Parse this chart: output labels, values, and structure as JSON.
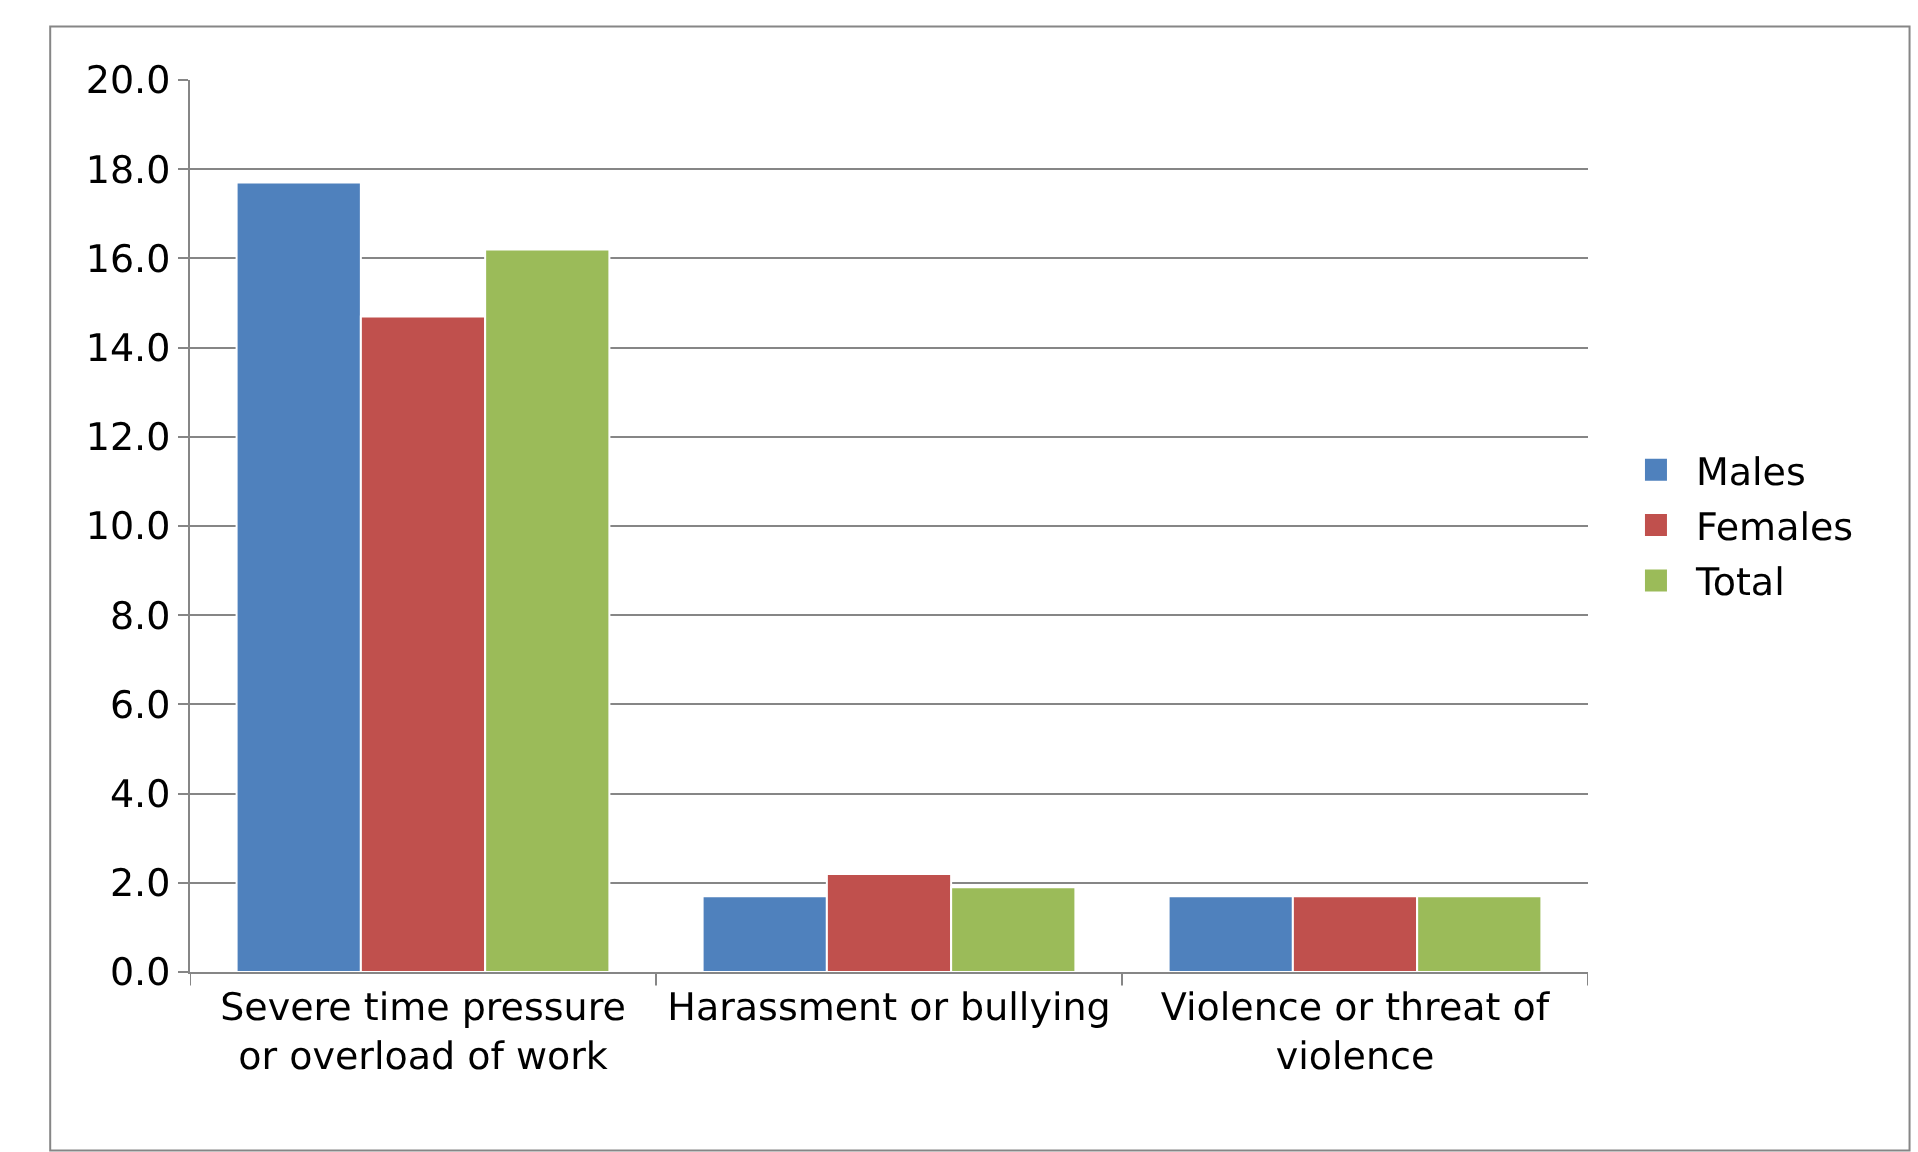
{
  "chart_data": {
    "type": "bar",
    "categories": [
      "Severe time pressure or overload of work",
      "Harassment or bullying",
      "Violence or threat of violence"
    ],
    "series": [
      {
        "name": "Males",
        "color": "#4f81bd",
        "values": [
          17.7,
          1.7,
          1.7
        ]
      },
      {
        "name": "Females",
        "color": "#c0504d",
        "values": [
          14.7,
          2.2,
          1.7
        ]
      },
      {
        "name": "Total",
        "color": "#9bbb59",
        "values": [
          16.2,
          1.9,
          1.7
        ]
      }
    ],
    "ylim": [
      0,
      20
    ],
    "yticks": [
      {
        "value": 0,
        "label": "0.0"
      },
      {
        "value": 2,
        "label": "2.0"
      },
      {
        "value": 4,
        "label": "4.0"
      },
      {
        "value": 6,
        "label": "6.0"
      },
      {
        "value": 8,
        "label": "8.0"
      },
      {
        "value": 10,
        "label": "10.0"
      },
      {
        "value": 12,
        "label": "12.0"
      },
      {
        "value": 14,
        "label": "14.0"
      },
      {
        "value": 16,
        "label": "16.0"
      },
      {
        "value": 18,
        "label": "18.0"
      },
      {
        "value": 20,
        "label": "20.0"
      }
    ],
    "grid": "y",
    "legend": "right"
  }
}
